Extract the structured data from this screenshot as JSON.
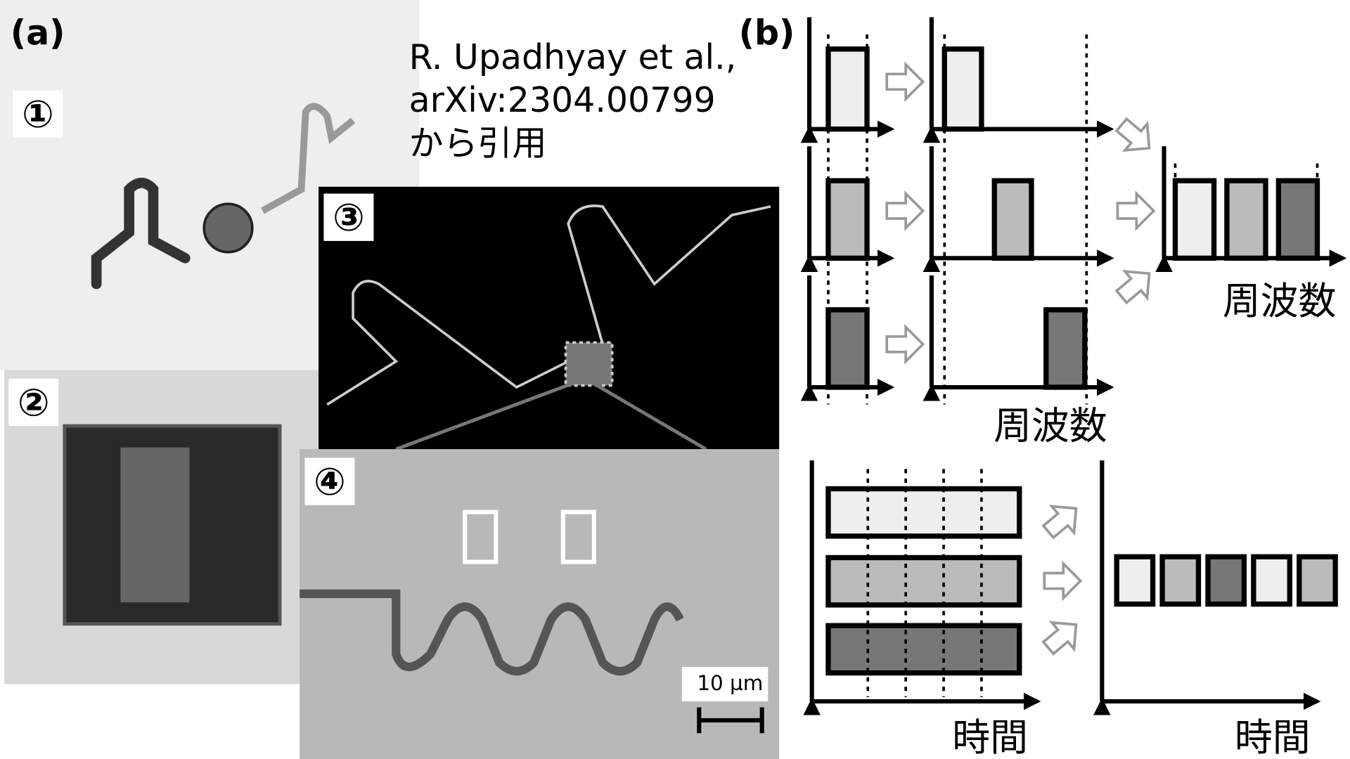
{
  "panel_a": {
    "label": "(a)",
    "citation": [
      "R. Upadhyay et al.,",
      "arXiv:2304.00799",
      "から引用"
    ],
    "markers": [
      "①",
      "②",
      "③",
      "④"
    ],
    "scale_bar": "10 µm"
  },
  "panel_b": {
    "label": "(b)",
    "axis_labels": [
      "周波数",
      "周波数",
      "時間",
      "時間"
    ]
  }
}
